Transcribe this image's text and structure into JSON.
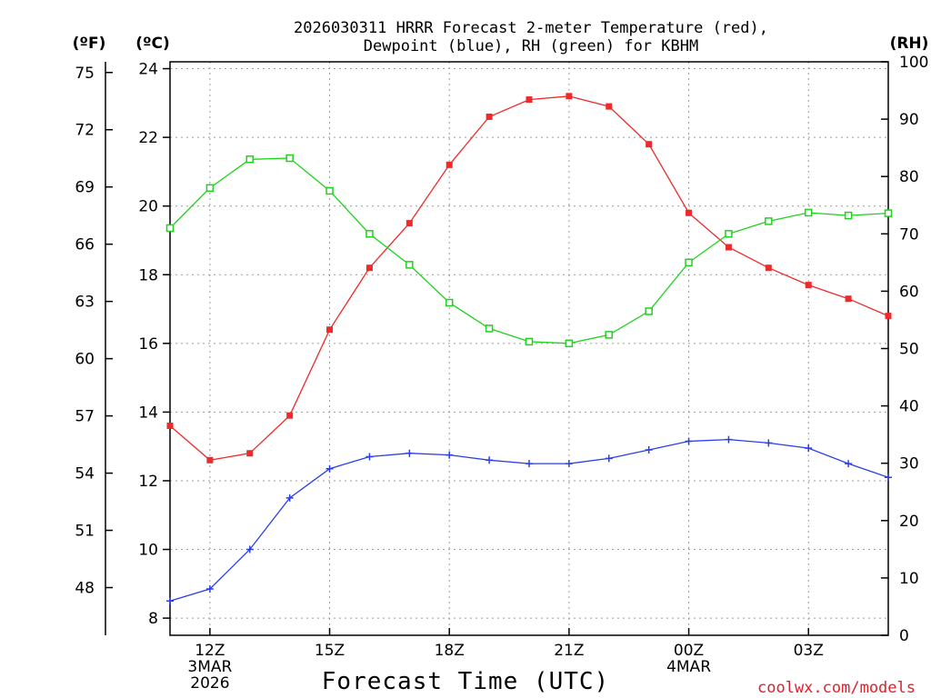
{
  "chart_data": {
    "type": "line",
    "title_lines": [
      "2026030311 HRRR Forecast 2-meter Temperature (red),",
      "Dewpoint (blue), RH (green) for KBHM"
    ],
    "xlabel": "Forecast Time (UTC)",
    "credit": "coolwx.com/models",
    "units": {
      "f": "(ºF)",
      "c": "(ºC)",
      "rh": "(RH)"
    },
    "x_hours": [
      11,
      12,
      13,
      14,
      15,
      16,
      17,
      18,
      19,
      20,
      21,
      22,
      23,
      24,
      25,
      26,
      27,
      28,
      29
    ],
    "x_range": [
      11,
      29
    ],
    "x_ticks": [
      {
        "hour": 12,
        "lines": [
          "12Z",
          "3MAR",
          "2026"
        ]
      },
      {
        "hour": 15,
        "lines": [
          "15Z"
        ]
      },
      {
        "hour": 18,
        "lines": [
          "18Z"
        ]
      },
      {
        "hour": 21,
        "lines": [
          "21Z"
        ]
      },
      {
        "hour": 24,
        "lines": [
          "00Z",
          "4MAR"
        ]
      },
      {
        "hour": 27,
        "lines": [
          "03Z"
        ]
      }
    ],
    "c_range": [
      7.5,
      24.2
    ],
    "c_ticks": [
      "8",
      "10",
      "12",
      "14",
      "16",
      "18",
      "20",
      "22",
      "24"
    ],
    "f_ticks": [
      "48",
      "51",
      "54",
      "57",
      "60",
      "63",
      "66",
      "69",
      "72",
      "75"
    ],
    "rh_range": [
      0,
      100
    ],
    "rh_ticks": [
      "0",
      "10",
      "20",
      "30",
      "40",
      "50",
      "60",
      "70",
      "80",
      "90",
      "100"
    ],
    "series": [
      {
        "name": "Temperature",
        "unit": "C",
        "color": "#ee2a2a",
        "marker": "filled-square",
        "values": [
          13.6,
          12.6,
          12.8,
          13.9,
          16.4,
          18.2,
          19.5,
          21.2,
          22.6,
          23.1,
          23.2,
          22.9,
          21.8,
          19.8,
          18.8,
          18.2,
          17.7,
          17.3,
          16.8
        ]
      },
      {
        "name": "Dewpoint",
        "unit": "C",
        "color": "#2a3ee8",
        "marker": "plus",
        "values": [
          8.5,
          8.85,
          10.0,
          11.5,
          12.35,
          12.7,
          12.8,
          12.75,
          12.6,
          12.5,
          12.5,
          12.65,
          12.9,
          13.15,
          13.2,
          13.1,
          12.95,
          12.5,
          12.1
        ]
      },
      {
        "name": "RH",
        "unit": "RH",
        "color": "#1ed21e",
        "marker": "open-square",
        "values": [
          71,
          78,
          83,
          83.2,
          77.5,
          70,
          64.6,
          58,
          53.5,
          51.2,
          50.9,
          52.4,
          56.5,
          65,
          70,
          72.2,
          73.7,
          73.2,
          73.6
        ]
      }
    ]
  }
}
